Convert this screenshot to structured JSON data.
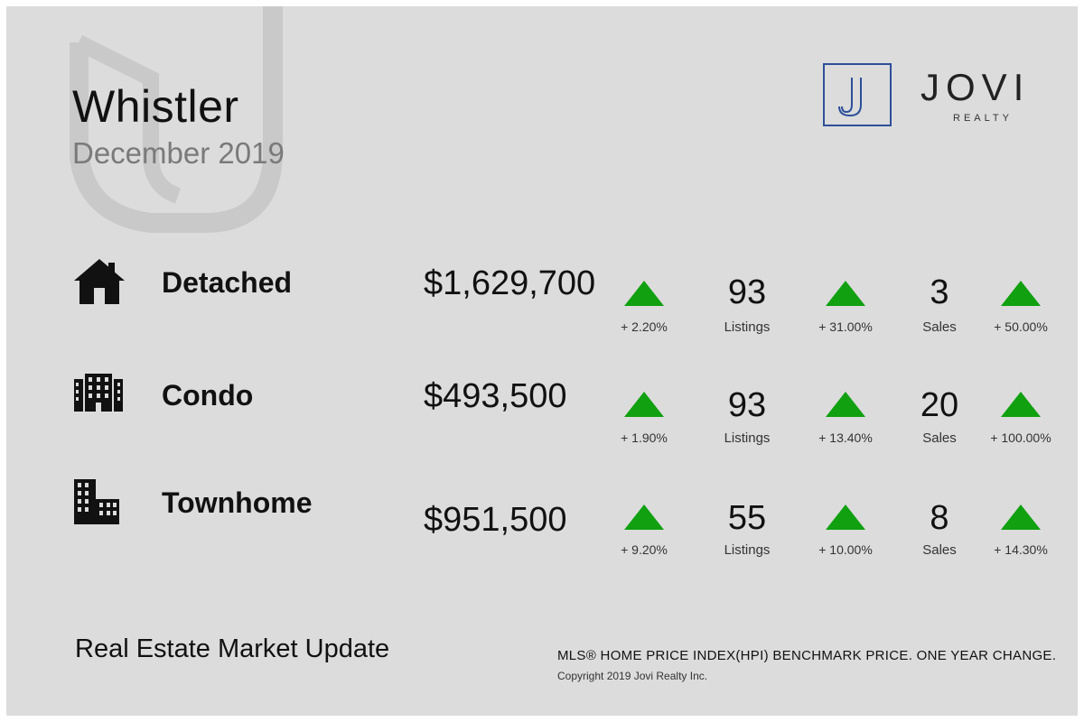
{
  "header": {
    "city": "Whistler",
    "period": "December 2019"
  },
  "logo": {
    "mark": "J",
    "name": "JOVI",
    "subtitle": "REALTY"
  },
  "colors": {
    "background": "#dcdcdc",
    "up_arrow": "#10a010",
    "logo_accent": "#2d4f9a"
  },
  "rows": [
    {
      "icon": "house-icon",
      "label": "Detached",
      "price": "$1,629,700",
      "price_change": "+ 2.20%",
      "listings": "93",
      "listings_label": "Listings",
      "listings_change": "+ 31.00%",
      "sales": "3",
      "sales_label": "Sales",
      "sales_change": "+ 50.00%"
    },
    {
      "icon": "condo-building-icon",
      "label": "Condo",
      "price": "$493,500",
      "price_change": "+ 1.90%",
      "listings": "93",
      "listings_label": "Listings",
      "listings_change": "+ 13.40%",
      "sales": "20",
      "sales_label": "Sales",
      "sales_change": "+ 100.00%"
    },
    {
      "icon": "townhome-building-icon",
      "label": "Townhome",
      "price": "$951,500",
      "price_change": "+ 9.20%",
      "listings": "55",
      "listings_label": "Listings",
      "listings_change": "+ 10.00%",
      "sales": "8",
      "sales_label": "Sales",
      "sales_change": "+ 14.30%"
    }
  ],
  "footer": {
    "title": "Real Estate Market Update",
    "note": "MLS® HOME PRICE INDEX(HPI) BENCHMARK PRICE. ONE YEAR CHANGE.",
    "copyright": "Copyright 2019 Jovi Realty Inc."
  }
}
